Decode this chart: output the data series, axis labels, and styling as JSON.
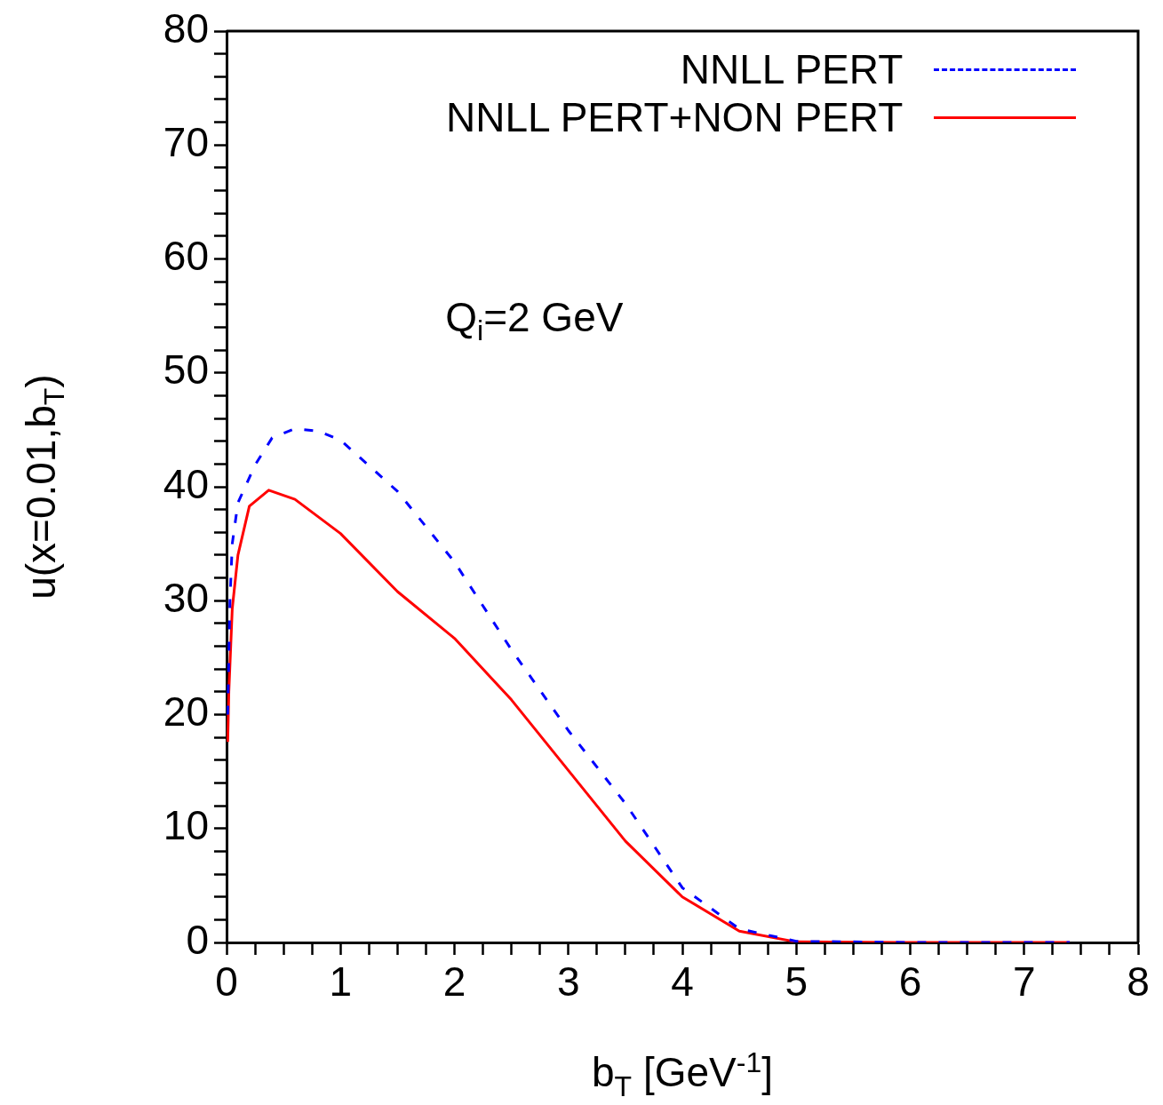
{
  "chart_data": {
    "type": "line",
    "xlabel": "b$_{T}$ [GeV$^{-1}$]",
    "ylabel": "u(x=0.01,b$_{T}$)",
    "annotations": [
      "Q$_{i}$=2 GeV"
    ],
    "xlim": [
      0,
      8
    ],
    "ylim": [
      0,
      80
    ],
    "xticks": [
      0,
      {
        "value": 0.25,
        "label": null
      },
      {
        "value": 0.5,
        "label": null
      },
      {
        "value": 0.75,
        "label": null
      },
      1,
      {
        "value": 1.25,
        "label": null
      },
      {
        "value": 1.5,
        "label": null
      },
      {
        "value": 1.75,
        "label": null
      },
      2,
      {
        "value": 2.25,
        "label": null
      },
      {
        "value": 2.5,
        "label": null
      },
      {
        "value": 2.75,
        "label": null
      },
      3,
      {
        "value": 3.25,
        "label": null
      },
      {
        "value": 3.5,
        "label": null
      },
      {
        "value": 3.75,
        "label": null
      },
      4,
      {
        "value": 4.25,
        "label": null
      },
      {
        "value": 4.5,
        "label": null
      },
      {
        "value": 4.75,
        "label": null
      },
      5,
      {
        "value": 5.25,
        "label": null
      },
      {
        "value": 5.5,
        "label": null
      },
      {
        "value": 5.75,
        "label": null
      },
      6,
      {
        "value": 6.25,
        "label": null
      },
      {
        "value": 6.5,
        "label": null
      },
      {
        "value": 6.75,
        "label": null
      },
      7,
      {
        "value": 7.25,
        "label": null
      },
      {
        "value": 7.5,
        "label": null
      },
      {
        "value": 7.75,
        "label": null
      },
      8
    ],
    "yticks": [
      0,
      {
        "value": 2,
        "label": null
      },
      {
        "value": 4,
        "label": null
      },
      {
        "value": 6,
        "label": null
      },
      {
        "value": 8,
        "label": null
      },
      10,
      {
        "value": 12,
        "label": null
      },
      {
        "value": 14,
        "label": null
      },
      {
        "value": 16,
        "label": null
      },
      {
        "value": 18,
        "label": null
      },
      20,
      {
        "value": 22,
        "label": null
      },
      {
        "value": 24,
        "label": null
      },
      {
        "value": 26,
        "label": null
      },
      {
        "value": 28,
        "label": null
      },
      30,
      {
        "value": 32,
        "label": null
      },
      {
        "value": 34,
        "label": null
      },
      {
        "value": 36,
        "label": null
      },
      {
        "value": 38,
        "label": null
      },
      40,
      {
        "value": 42,
        "label": null
      },
      {
        "value": 44,
        "label": null
      },
      {
        "value": 46,
        "label": null
      },
      {
        "value": 48,
        "label": null
      },
      50,
      {
        "value": 52,
        "label": null
      },
      {
        "value": 54,
        "label": null
      },
      {
        "value": 56,
        "label": null
      },
      {
        "value": 58,
        "label": null
      },
      60,
      {
        "value": 62,
        "label": null
      },
      {
        "value": 64,
        "label": null
      },
      {
        "value": 66,
        "label": null
      },
      {
        "value": 68,
        "label": null
      },
      70,
      {
        "value": 72,
        "label": null
      },
      {
        "value": 74,
        "label": null
      },
      {
        "value": 76,
        "label": null
      },
      {
        "value": 78,
        "label": null
      },
      80
    ],
    "grid": false,
    "legend": "top right",
    "marker": "none",
    "series": [
      {
        "name": "NNLL PERT",
        "color": "#0000ff",
        "line_style": "dashed",
        "x": [
          0.01,
          0.03,
          0.05,
          0.1,
          0.25,
          0.4,
          0.6,
          0.8,
          1,
          1.5,
          2,
          2.5,
          3,
          3.5,
          4,
          4.5,
          5,
          6,
          7,
          7.4
        ],
        "values": [
          20,
          30,
          35,
          38.6,
          41.9,
          44.3,
          45.1,
          44.9,
          44.1,
          39.6,
          33.4,
          25.7,
          18.6,
          12.2,
          4.8,
          1.2,
          0.1,
          0,
          0,
          0
        ]
      },
      {
        "name": "NNLL PERT+NON PERT",
        "color": "#ff0000",
        "line_style": "solid",
        "x": [
          0.01,
          0.02,
          0.05,
          0.1,
          0.2,
          0.37,
          0.6,
          1,
          1.5,
          2,
          2.5,
          3,
          3.5,
          4,
          4.5,
          5,
          6,
          7,
          7.4
        ],
        "values": [
          17.6,
          22,
          29.3,
          34,
          38.3,
          39.7,
          38.9,
          35.9,
          30.8,
          26.7,
          21.3,
          15.1,
          8.9,
          4,
          1,
          0.05,
          0,
          0,
          0
        ]
      }
    ]
  }
}
